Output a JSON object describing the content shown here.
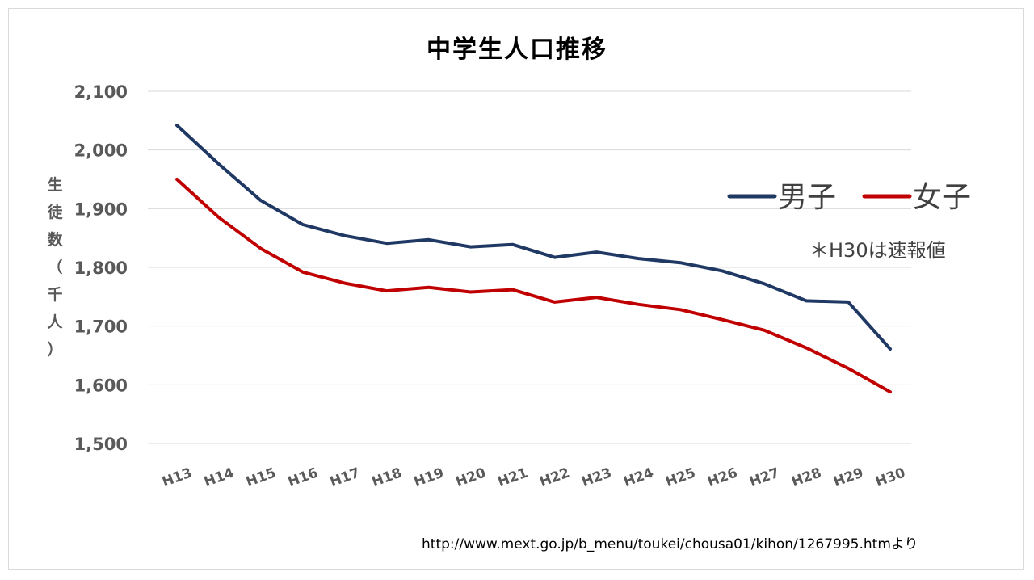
{
  "chart_data": {
    "type": "line",
    "title": "中学生人口推移",
    "ylabel_chars": [
      "生",
      "徒",
      "数",
      "（",
      "千",
      "人",
      "）"
    ],
    "x": [
      "H13",
      "H14",
      "H15",
      "H16",
      "H17",
      "H18",
      "H19",
      "H20",
      "H21",
      "H22",
      "H23",
      "H24",
      "H25",
      "H26",
      "H27",
      "H28",
      "H29",
      "H30"
    ],
    "yticks": [
      "1,500",
      "1,600",
      "1,700",
      "1,800",
      "1,900",
      "2,000",
      "2,100"
    ],
    "ylim": [
      1500,
      2100
    ],
    "grid": true,
    "legend_position": "right",
    "series": [
      {
        "name": "男子",
        "color": "#1f3864",
        "values": [
          2042,
          1976,
          1914,
          1873,
          1854,
          1841,
          1847,
          1835,
          1839,
          1817,
          1826,
          1815,
          1808,
          1794,
          1772,
          1743,
          1741,
          1661
        ]
      },
      {
        "name": "女子",
        "color": "#c00000",
        "values": [
          1950,
          1885,
          1832,
          1792,
          1773,
          1760,
          1766,
          1758,
          1762,
          1741,
          1749,
          1737,
          1728,
          1711,
          1693,
          1663,
          1628,
          1588
        ]
      }
    ],
    "annotation": "＊H30は速報値"
  },
  "source": "http://www.mext.go.jp/b_menu/toukei/chousa01/kihon/1267995.htmより"
}
